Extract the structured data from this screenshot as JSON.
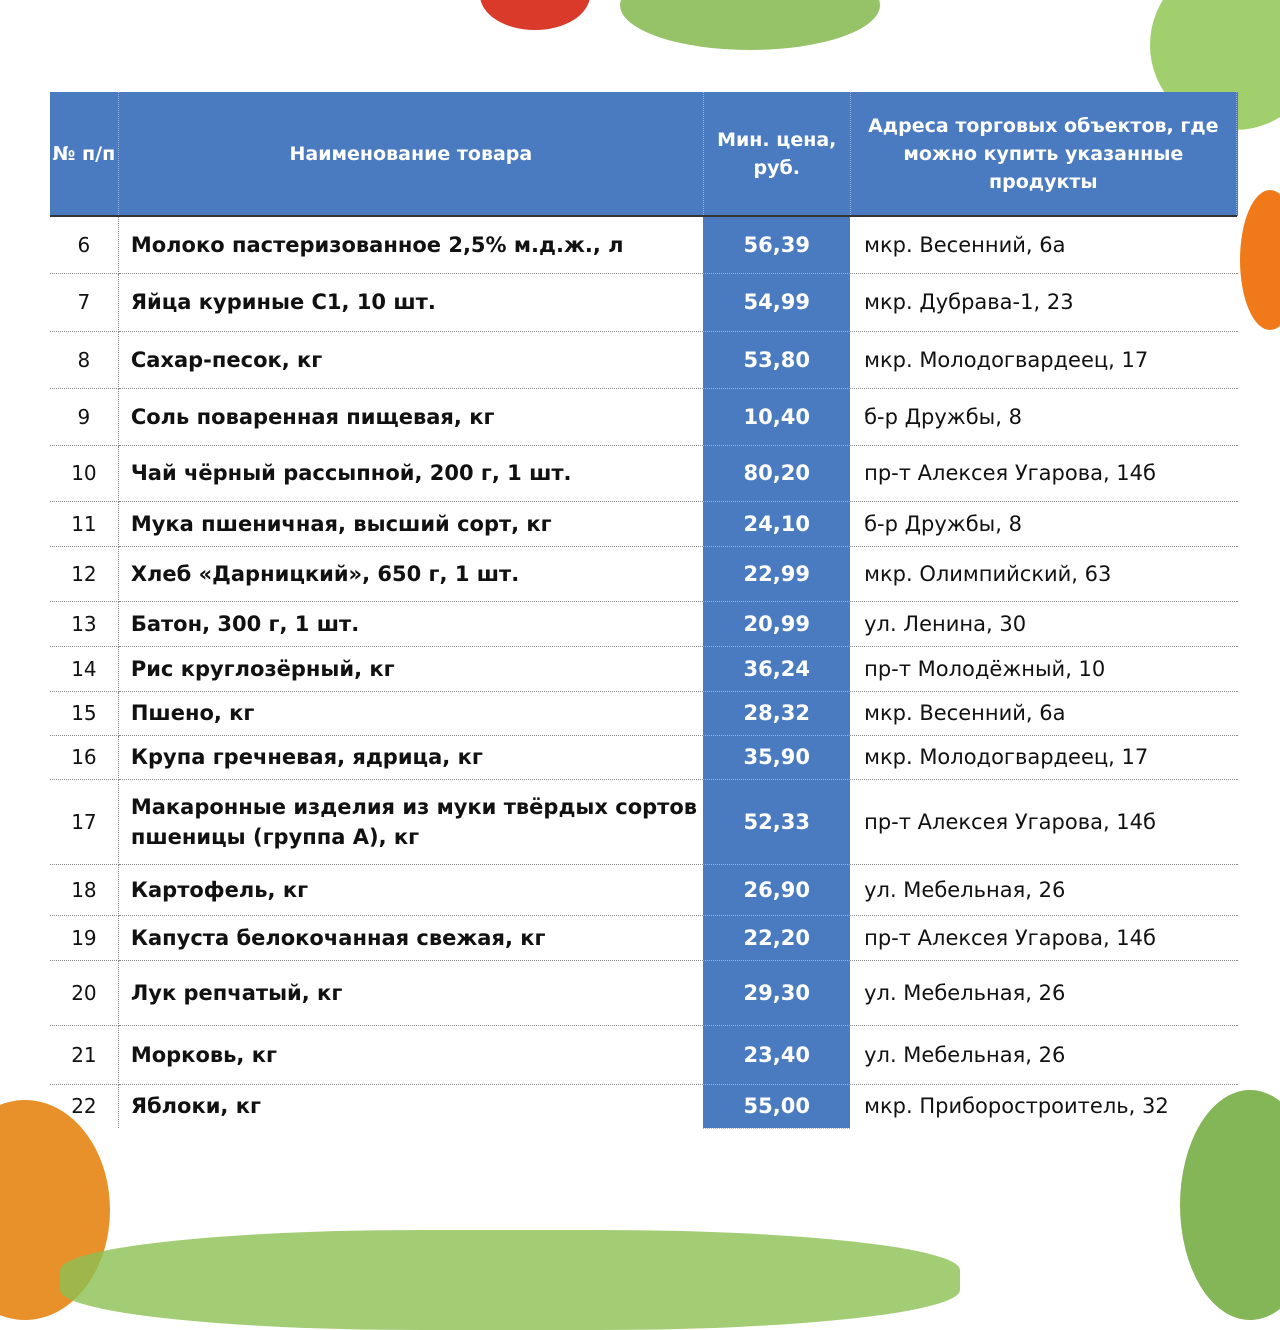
{
  "header": {
    "num": "№ п/п",
    "name": "Наименование товара",
    "price": "Мин. цена, руб.",
    "address": "Адреса торговых объектов, где можно купить указанные продукты"
  },
  "rows": [
    {
      "num": "6",
      "name": "Молоко пастеризованное 2,5% м.д.ж., л",
      "price": "56,39",
      "address": "мкр. Весенний, 6а"
    },
    {
      "num": "7",
      "name": "Яйца куриные С1, 10 шт.",
      "price": "54,99",
      "address": "мкр. Дубрава-1, 23"
    },
    {
      "num": "8",
      "name": "Сахар-песок, кг",
      "price": "53,80",
      "address": "мкр. Молодогвардеец, 17"
    },
    {
      "num": "9",
      "name": "Соль поваренная пищевая, кг",
      "price": "10,40",
      "address": "б-р Дружбы, 8"
    },
    {
      "num": "10",
      "name": "Чай чёрный рассыпной, 200 г, 1 шт.",
      "price": "80,20",
      "address": "пр-т Алексея Угарова, 14б"
    },
    {
      "num": "11",
      "name": "Мука пшеничная, высший сорт, кг",
      "price": "24,10",
      "address": "б-р Дружбы, 8"
    },
    {
      "num": "12",
      "name": "Хлеб «Дарницкий», 650 г, 1 шт.",
      "price": "22,99",
      "address": "мкр. Олимпийский, 63"
    },
    {
      "num": "13",
      "name": "Батон, 300 г, 1 шт.",
      "price": "20,99",
      "address": "ул. Ленина, 30"
    },
    {
      "num": "14",
      "name": "Рис круглозёрный, кг",
      "price": "36,24",
      "address": "пр-т Молодёжный, 10"
    },
    {
      "num": "15",
      "name": "Пшено, кг",
      "price": "28,32",
      "address": "мкр. Весенний, 6а"
    },
    {
      "num": "16",
      "name": "Крупа гречневая, ядрица, кг",
      "price": "35,90",
      "address": "мкр. Молодогвардеец, 17"
    },
    {
      "num": "17",
      "name": "Макаронные изделия из муки твёрдых сортов пшеницы (группа А), кг",
      "price": "52,33",
      "address": "пр-т Алексея Угарова, 14б"
    },
    {
      "num": "18",
      "name": "Картофель, кг",
      "price": "26,90",
      "address": "ул. Мебельная, 26"
    },
    {
      "num": "19",
      "name": "Капуста белокочанная свежая, кг",
      "price": "22,20",
      "address": "пр-т Алексея Угарова, 14б"
    },
    {
      "num": "20",
      "name": "Лук репчатый, кг",
      "price": "29,30",
      "address": "ул. Мебельная, 26"
    },
    {
      "num": "21",
      "name": "Морковь, кг",
      "price": "23,40",
      "address": "ул. Мебельная, 26"
    },
    {
      "num": "22",
      "name": "Яблоки, кг",
      "price": "55,00",
      "address": "мкр. Приборостроитель, 32"
    }
  ],
  "colors": {
    "accent": "#4a7bc0"
  }
}
